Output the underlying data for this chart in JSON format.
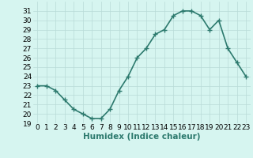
{
  "x": [
    0,
    1,
    2,
    3,
    4,
    5,
    6,
    7,
    8,
    9,
    10,
    11,
    12,
    13,
    14,
    15,
    16,
    17,
    18,
    19,
    20,
    21,
    22,
    23
  ],
  "y": [
    23,
    23,
    22.5,
    21.5,
    20.5,
    20,
    19.5,
    19.5,
    20.5,
    22.5,
    24,
    26,
    27,
    28.5,
    29,
    30.5,
    31,
    31,
    30.5,
    29,
    30,
    27,
    25.5,
    24
  ],
  "xlabel": "Humidex (Indice chaleur)",
  "xlim": [
    -0.5,
    23.5
  ],
  "ylim": [
    19,
    32
  ],
  "yticks": [
    19,
    20,
    21,
    22,
    23,
    24,
    25,
    26,
    27,
    28,
    29,
    30,
    31
  ],
  "xticks": [
    0,
    1,
    2,
    3,
    4,
    5,
    6,
    7,
    8,
    9,
    10,
    11,
    12,
    13,
    14,
    15,
    16,
    17,
    18,
    19,
    20,
    21,
    22,
    23
  ],
  "line_color": "#2d7a6e",
  "bg_color": "#d6f5f0",
  "grid_color": "#b8dbd7",
  "marker": "+",
  "marker_size": 4,
  "marker_edge_width": 1.0,
  "line_width": 1.2,
  "xlabel_fontsize": 7.5,
  "tick_fontsize": 6.5
}
